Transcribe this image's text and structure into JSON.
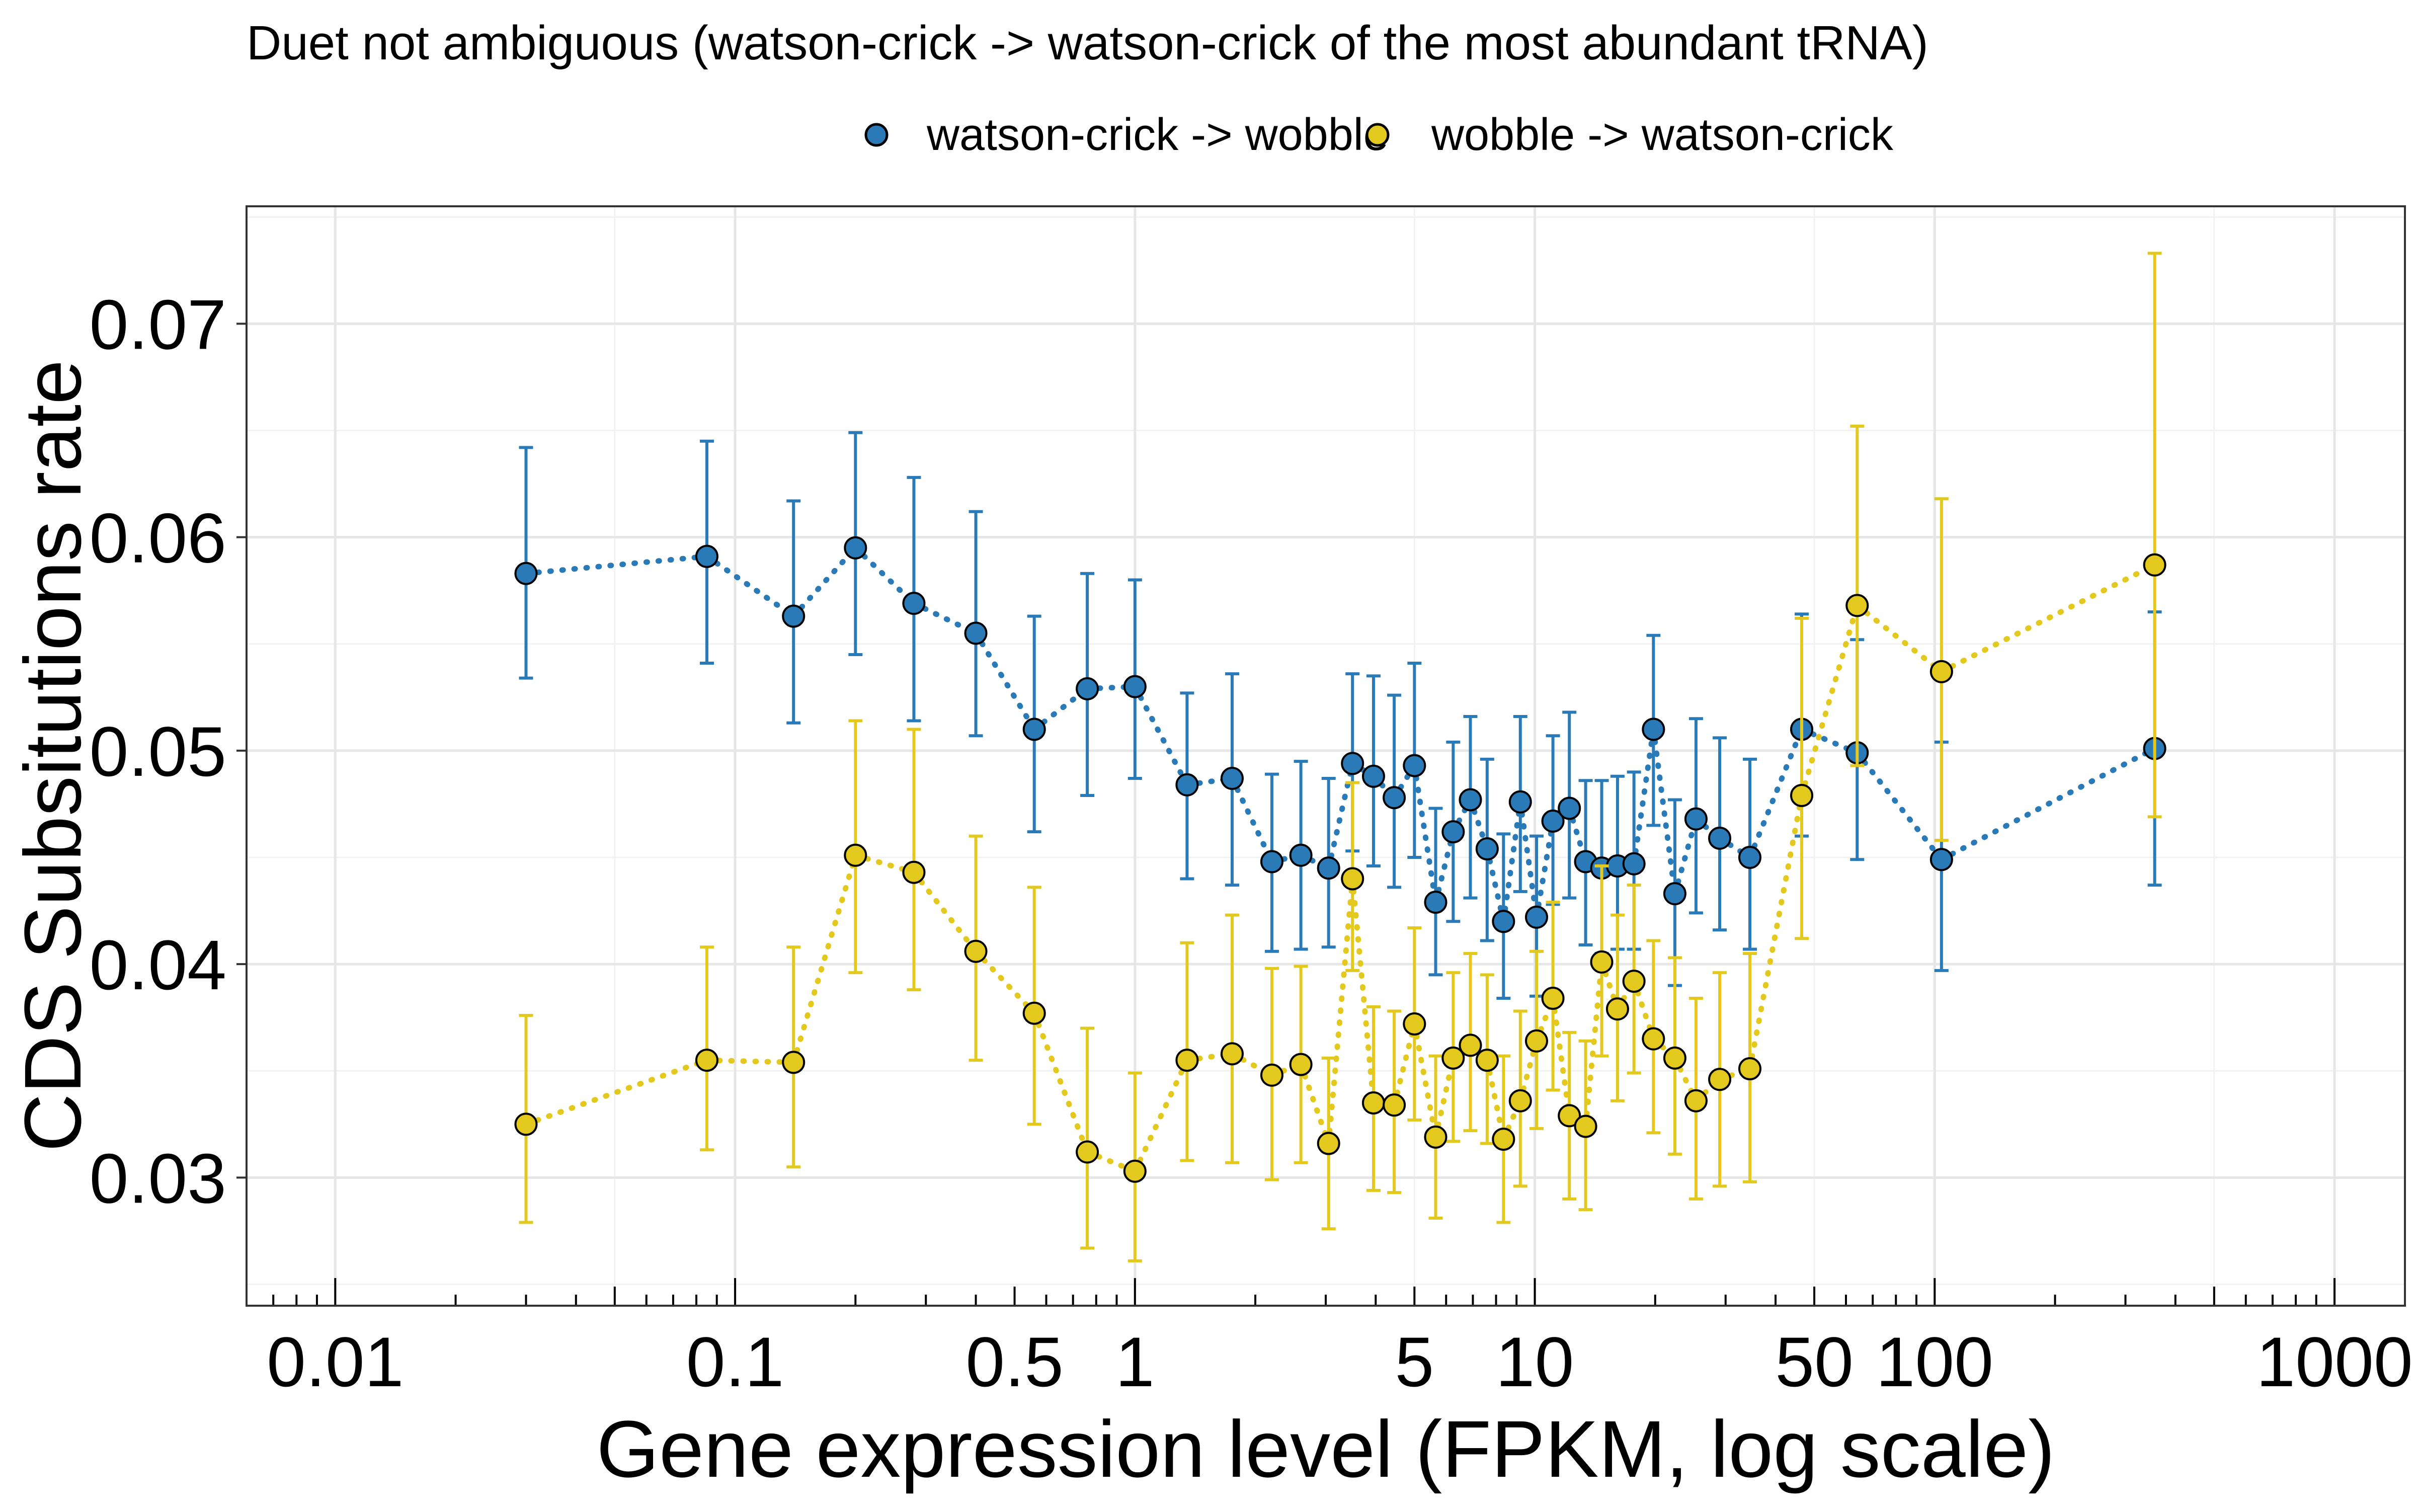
{
  "chart_data": {
    "type": "scatter",
    "title": "Duet not ambiguous (watson-crick -> watson-crick of the most abundant tRNA)",
    "xlabel": "Gene expression level (FPKM, log scale)",
    "ylabel": "CDS Subsitutions rate",
    "x_scale": "log10",
    "xlim": [
      0.006,
      1500
    ],
    "ylim": [
      0.024,
      0.0755
    ],
    "x_ticks": [
      0.01,
      0.1,
      0.5,
      1,
      5,
      10,
      50,
      100,
      1000
    ],
    "x_tick_labels": [
      "0.01",
      "0.1",
      "0.5",
      "1",
      "5",
      "10",
      "50",
      "100",
      "1000"
    ],
    "y_ticks": [
      0.03,
      0.04,
      0.05,
      0.06,
      0.07
    ],
    "y_tick_labels": [
      "0.03",
      "0.04",
      "0.05",
      "0.06",
      "0.07"
    ],
    "grid": true,
    "legend_position": "top",
    "series": [
      {
        "name": "watson-crick -> wobble",
        "color": "#2a7ab8",
        "points": [
          {
            "x": 0.03,
            "y": 0.0583,
            "lo": 0.0534,
            "hi": 0.0642
          },
          {
            "x": 0.085,
            "y": 0.0591,
            "lo": 0.0541,
            "hi": 0.0645
          },
          {
            "x": 0.14,
            "y": 0.0563,
            "lo": 0.0513,
            "hi": 0.0617
          },
          {
            "x": 0.2,
            "y": 0.0595,
            "lo": 0.0545,
            "hi": 0.0649
          },
          {
            "x": 0.28,
            "y": 0.0569,
            "lo": 0.0514,
            "hi": 0.0628
          },
          {
            "x": 0.4,
            "y": 0.0555,
            "lo": 0.0507,
            "hi": 0.0612
          },
          {
            "x": 0.56,
            "y": 0.051,
            "lo": 0.0462,
            "hi": 0.0563
          },
          {
            "x": 0.76,
            "y": 0.0529,
            "lo": 0.0479,
            "hi": 0.0583
          },
          {
            "x": 1.0,
            "y": 0.053,
            "lo": 0.0487,
            "hi": 0.058
          },
          {
            "x": 1.35,
            "y": 0.0484,
            "lo": 0.044,
            "hi": 0.0527
          },
          {
            "x": 1.75,
            "y": 0.0487,
            "lo": 0.0437,
            "hi": 0.0536
          },
          {
            "x": 2.2,
            "y": 0.0448,
            "lo": 0.0406,
            "hi": 0.0489
          },
          {
            "x": 2.6,
            "y": 0.0451,
            "lo": 0.0407,
            "hi": 0.0495
          },
          {
            "x": 3.05,
            "y": 0.0445,
            "lo": 0.0408,
            "hi": 0.0487
          },
          {
            "x": 3.5,
            "y": 0.0494,
            "lo": 0.0453,
            "hi": 0.0536
          },
          {
            "x": 3.95,
            "y": 0.0488,
            "lo": 0.0446,
            "hi": 0.0535
          },
          {
            "x": 4.45,
            "y": 0.0478,
            "lo": 0.0436,
            "hi": 0.0526
          },
          {
            "x": 5.0,
            "y": 0.0493,
            "lo": 0.045,
            "hi": 0.0541
          },
          {
            "x": 5.65,
            "y": 0.0429,
            "lo": 0.0395,
            "hi": 0.0473
          },
          {
            "x": 6.25,
            "y": 0.0462,
            "lo": 0.042,
            "hi": 0.0504
          },
          {
            "x": 6.9,
            "y": 0.0477,
            "lo": 0.0431,
            "hi": 0.0516
          },
          {
            "x": 7.6,
            "y": 0.0454,
            "lo": 0.0411,
            "hi": 0.0496
          },
          {
            "x": 8.35,
            "y": 0.042,
            "lo": 0.0384,
            "hi": 0.0461
          },
          {
            "x": 9.2,
            "y": 0.0476,
            "lo": 0.0434,
            "hi": 0.0516
          },
          {
            "x": 10.1,
            "y": 0.0422,
            "lo": 0.0385,
            "hi": 0.046
          },
          {
            "x": 11.1,
            "y": 0.0467,
            "lo": 0.0428,
            "hi": 0.0507
          },
          {
            "x": 12.2,
            "y": 0.0473,
            "lo": 0.0431,
            "hi": 0.0518
          },
          {
            "x": 13.4,
            "y": 0.0448,
            "lo": 0.0409,
            "hi": 0.0486
          },
          {
            "x": 14.7,
            "y": 0.0445,
            "lo": 0.0405,
            "hi": 0.0486
          },
          {
            "x": 16.1,
            "y": 0.0446,
            "lo": 0.0407,
            "hi": 0.0488
          },
          {
            "x": 17.7,
            "y": 0.0447,
            "lo": 0.0407,
            "hi": 0.049
          },
          {
            "x": 19.8,
            "y": 0.051,
            "lo": 0.0465,
            "hi": 0.0554
          },
          {
            "x": 22.4,
            "y": 0.0433,
            "lo": 0.039,
            "hi": 0.0477
          },
          {
            "x": 25.3,
            "y": 0.0468,
            "lo": 0.0424,
            "hi": 0.0515
          },
          {
            "x": 29.0,
            "y": 0.0459,
            "lo": 0.0416,
            "hi": 0.0506
          },
          {
            "x": 34.5,
            "y": 0.045,
            "lo": 0.0407,
            "hi": 0.0496
          },
          {
            "x": 46.5,
            "y": 0.051,
            "lo": 0.046,
            "hi": 0.0564
          },
          {
            "x": 64.0,
            "y": 0.0499,
            "lo": 0.0449,
            "hi": 0.0552
          },
          {
            "x": 104.0,
            "y": 0.0449,
            "lo": 0.0397,
            "hi": 0.0504
          },
          {
            "x": 355.0,
            "y": 0.0501,
            "lo": 0.0437,
            "hi": 0.0565
          }
        ]
      },
      {
        "name": "wobble -> watson-crick",
        "color": "#e3c81e",
        "points": [
          {
            "x": 0.03,
            "y": 0.0325,
            "lo": 0.0279,
            "hi": 0.0376
          },
          {
            "x": 0.085,
            "y": 0.0355,
            "lo": 0.0313,
            "hi": 0.0408
          },
          {
            "x": 0.14,
            "y": 0.0354,
            "lo": 0.0305,
            "hi": 0.0408
          },
          {
            "x": 0.2,
            "y": 0.0451,
            "lo": 0.0396,
            "hi": 0.0514
          },
          {
            "x": 0.28,
            "y": 0.0443,
            "lo": 0.0388,
            "hi": 0.051
          },
          {
            "x": 0.4,
            "y": 0.0406,
            "lo": 0.0355,
            "hi": 0.046
          },
          {
            "x": 0.56,
            "y": 0.0377,
            "lo": 0.0325,
            "hi": 0.0436
          },
          {
            "x": 0.76,
            "y": 0.0312,
            "lo": 0.0267,
            "hi": 0.037
          },
          {
            "x": 1.0,
            "y": 0.0303,
            "lo": 0.0261,
            "hi": 0.0349
          },
          {
            "x": 1.35,
            "y": 0.0355,
            "lo": 0.0308,
            "hi": 0.041
          },
          {
            "x": 1.75,
            "y": 0.0358,
            "lo": 0.0307,
            "hi": 0.0423
          },
          {
            "x": 2.2,
            "y": 0.0348,
            "lo": 0.0299,
            "hi": 0.0398
          },
          {
            "x": 2.6,
            "y": 0.0353,
            "lo": 0.0307,
            "hi": 0.0399
          },
          {
            "x": 3.05,
            "y": 0.0316,
            "lo": 0.0276,
            "hi": 0.0356
          },
          {
            "x": 3.5,
            "y": 0.044,
            "lo": 0.0397,
            "hi": 0.0485
          },
          {
            "x": 3.95,
            "y": 0.0335,
            "lo": 0.0294,
            "hi": 0.038
          },
          {
            "x": 4.45,
            "y": 0.0334,
            "lo": 0.0293,
            "hi": 0.0378
          },
          {
            "x": 5.0,
            "y": 0.0372,
            "lo": 0.0327,
            "hi": 0.0417
          },
          {
            "x": 5.65,
            "y": 0.0319,
            "lo": 0.0281,
            "hi": 0.0357
          },
          {
            "x": 6.25,
            "y": 0.0356,
            "lo": 0.0317,
            "hi": 0.0396
          },
          {
            "x": 6.9,
            "y": 0.0362,
            "lo": 0.0322,
            "hi": 0.0405
          },
          {
            "x": 7.6,
            "y": 0.0355,
            "lo": 0.0316,
            "hi": 0.0395
          },
          {
            "x": 8.35,
            "y": 0.0318,
            "lo": 0.0279,
            "hi": 0.0357
          },
          {
            "x": 9.2,
            "y": 0.0336,
            "lo": 0.0296,
            "hi": 0.0378
          },
          {
            "x": 10.1,
            "y": 0.0364,
            "lo": 0.0323,
            "hi": 0.0406
          },
          {
            "x": 11.1,
            "y": 0.0384,
            "lo": 0.0341,
            "hi": 0.0429
          },
          {
            "x": 12.2,
            "y": 0.0329,
            "lo": 0.029,
            "hi": 0.0368
          },
          {
            "x": 13.4,
            "y": 0.0324,
            "lo": 0.0285,
            "hi": 0.0364
          },
          {
            "x": 14.7,
            "y": 0.0401,
            "lo": 0.0357,
            "hi": 0.0446
          },
          {
            "x": 16.1,
            "y": 0.0379,
            "lo": 0.0336,
            "hi": 0.0423
          },
          {
            "x": 17.7,
            "y": 0.0392,
            "lo": 0.0349,
            "hi": 0.0437
          },
          {
            "x": 19.8,
            "y": 0.0365,
            "lo": 0.0321,
            "hi": 0.0411
          },
          {
            "x": 22.4,
            "y": 0.0356,
            "lo": 0.0311,
            "hi": 0.0403
          },
          {
            "x": 25.3,
            "y": 0.0336,
            "lo": 0.029,
            "hi": 0.0384
          },
          {
            "x": 29.0,
            "y": 0.0346,
            "lo": 0.0296,
            "hi": 0.0396
          },
          {
            "x": 34.5,
            "y": 0.0351,
            "lo": 0.0298,
            "hi": 0.0405
          },
          {
            "x": 46.5,
            "y": 0.0479,
            "lo": 0.0412,
            "hi": 0.0562
          },
          {
            "x": 64.0,
            "y": 0.0568,
            "lo": 0.0493,
            "hi": 0.0652
          },
          {
            "x": 104.0,
            "y": 0.0537,
            "lo": 0.0458,
            "hi": 0.0618
          },
          {
            "x": 355.0,
            "y": 0.0587,
            "lo": 0.0469,
            "hi": 0.0733
          }
        ]
      }
    ]
  }
}
